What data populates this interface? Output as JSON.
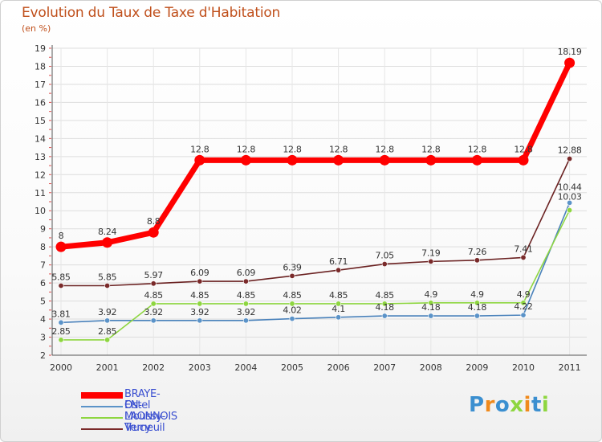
{
  "chart_data": {
    "type": "line",
    "title": "Evolution du Taux de Taxe d'Habitation",
    "ylabel": "(en %)",
    "xlabel": "",
    "x": [
      "2000",
      "2001",
      "2002",
      "2003",
      "2004",
      "2005",
      "2006",
      "2007",
      "2008",
      "2009",
      "2010",
      "2011"
    ],
    "ylim": [
      2,
      19
    ],
    "yticks": [
      "2",
      "3",
      "4",
      "5",
      "6",
      "7",
      "8",
      "9",
      "10",
      "11",
      "12",
      "13",
      "14",
      "15",
      "16",
      "17",
      "18",
      "19"
    ],
    "grid": true,
    "legend_position": "bottom-left",
    "series": [
      {
        "name": "BRAYE-EN-LAONNOIS",
        "color": "#ff0000",
        "values": [
          8,
          8.24,
          8.8,
          12.8,
          12.8,
          12.8,
          12.8,
          12.8,
          12.8,
          12.8,
          12.8,
          18.19
        ],
        "labels": [
          "8",
          "8.24",
          "8.8",
          "12.8",
          "12.8",
          "12.8",
          "12.8",
          "12.8",
          "12.8",
          "12.8",
          "12.8",
          "18.19"
        ]
      },
      {
        "name": "Ostel",
        "color": "#5b93c8",
        "values": [
          3.81,
          3.92,
          3.92,
          3.92,
          3.92,
          4.02,
          4.1,
          4.18,
          4.18,
          4.18,
          4.22,
          10.44
        ],
        "labels": [
          "3.81",
          "3.92",
          "3.92",
          "3.92",
          "3.92",
          "4.02",
          "4.1",
          "4.18",
          "4.18",
          "4.18",
          "4.22",
          "10.44"
        ]
      },
      {
        "name": "Moussy-Verneuil",
        "color": "#8ed640",
        "values": [
          2.85,
          2.85,
          4.85,
          4.85,
          4.85,
          4.85,
          4.85,
          4.85,
          4.9,
          4.9,
          4.9,
          10.03
        ],
        "labels": [
          "2.85",
          "2.85",
          "4.85",
          "4.85",
          "4.85",
          "4.85",
          "4.85",
          "4.85",
          "4.9",
          "4.9",
          "4.9",
          "10.03"
        ]
      },
      {
        "name": "Trucy",
        "color": "#7a2a2a",
        "values": [
          5.85,
          5.85,
          5.97,
          6.09,
          6.09,
          6.39,
          6.71,
          7.05,
          7.19,
          7.26,
          7.41,
          12.88
        ],
        "labels": [
          "5.85",
          "5.85",
          "5.97",
          "6.09",
          "6.09",
          "6.39",
          "6.71",
          "7.05",
          "7.19",
          "7.26",
          "7.41",
          "12.88"
        ]
      }
    ]
  },
  "logo": {
    "text": "Proxiti"
  }
}
